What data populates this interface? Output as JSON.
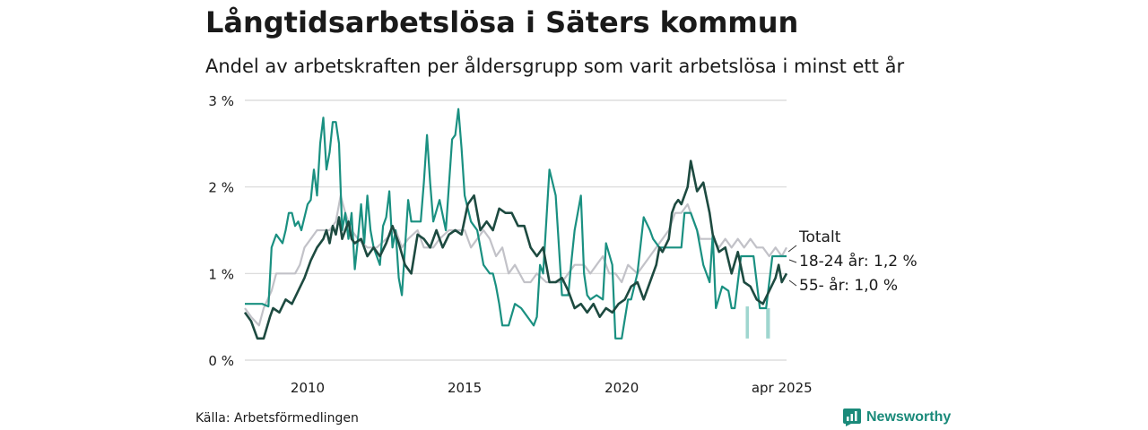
{
  "title": "Långtidsarbetslösa i Säters kommun",
  "subtitle": "Andel av arbetskraften per åldersgrupp som varit arbetslösa i minst ett år",
  "source": "Källa: Arbetsförmedlingen",
  "brand": "Newsworthy",
  "colors": {
    "totalt": "#c2c2c8",
    "youth": "#1a9081",
    "older": "#1d4a40",
    "band": "#9fd6cf",
    "grid": "#d8d8d8"
  },
  "chart_data": {
    "type": "line",
    "y_ticks": [
      "0 %",
      "1 %",
      "2 %",
      "3 %"
    ],
    "x_ticks": [
      "2010",
      "2015",
      "2020",
      "apr 2025"
    ],
    "ylim": [
      0,
      3
    ],
    "xlim": [
      2008.0,
      2025.25
    ],
    "labels": {
      "totalt": "Totalt",
      "youth": "18-24 år: 1,2 %",
      "older": "55- år: 1,0 %"
    },
    "series": [
      {
        "name": "Totalt",
        "key": "totalt",
        "x": [
          2008.0,
          2008.2,
          2008.45,
          2008.6,
          2008.85,
          2009.0,
          2009.2,
          2009.6,
          2009.75,
          2009.9,
          2010.1,
          2010.3,
          2010.5,
          2010.7,
          2010.9,
          2011.05,
          2011.2,
          2011.4,
          2011.6,
          2011.9,
          2012.2,
          2012.5,
          2012.8,
          2013.0,
          2013.2,
          2013.5,
          2013.7,
          2014.0,
          2014.2,
          2014.5,
          2014.8,
          2015.0,
          2015.2,
          2015.4,
          2015.6,
          2015.8,
          2016.0,
          2016.2,
          2016.4,
          2016.6,
          2016.9,
          2017.1,
          2017.3,
          2017.6,
          2017.9,
          2018.1,
          2018.3,
          2018.5,
          2018.8,
          2019.0,
          2019.2,
          2019.4,
          2019.6,
          2019.8,
          2020.0,
          2020.2,
          2020.5,
          2020.7,
          2020.9,
          2021.1,
          2021.3,
          2021.5,
          2021.7,
          2021.9,
          2022.1,
          2022.3,
          2022.5,
          2022.7,
          2022.9,
          2023.1,
          2023.3,
          2023.5,
          2023.7,
          2023.9,
          2024.1,
          2024.3,
          2024.5,
          2024.7,
          2024.9,
          2025.1,
          2025.25
        ],
        "y": [
          0.6,
          0.5,
          0.4,
          0.6,
          0.8,
          1.0,
          1.0,
          1.0,
          1.1,
          1.3,
          1.4,
          1.5,
          1.5,
          1.5,
          1.6,
          1.9,
          1.7,
          1.5,
          1.4,
          1.3,
          1.3,
          1.4,
          1.5,
          1.3,
          1.4,
          1.5,
          1.3,
          1.3,
          1.4,
          1.5,
          1.5,
          1.5,
          1.3,
          1.4,
          1.5,
          1.4,
          1.2,
          1.3,
          1.0,
          1.1,
          0.9,
          0.9,
          1.0,
          0.9,
          0.9,
          0.9,
          1.0,
          1.1,
          1.1,
          1.0,
          1.1,
          1.2,
          1.0,
          1.0,
          0.9,
          1.1,
          1.0,
          1.1,
          1.2,
          1.3,
          1.4,
          1.5,
          1.7,
          1.7,
          1.8,
          1.6,
          1.4,
          1.4,
          1.4,
          1.3,
          1.4,
          1.3,
          1.4,
          1.3,
          1.4,
          1.3,
          1.3,
          1.2,
          1.3,
          1.2,
          1.3
        ]
      },
      {
        "name": "18-24 år",
        "key": "youth",
        "x": [
          2008.0,
          2008.2,
          2008.55,
          2008.75,
          2008.85,
          2009.0,
          2009.2,
          2009.3,
          2009.4,
          2009.5,
          2009.6,
          2009.7,
          2009.8,
          2010.0,
          2010.1,
          2010.2,
          2010.3,
          2010.4,
          2010.5,
          2010.6,
          2010.7,
          2010.8,
          2010.9,
          2011.0,
          2011.1,
          2011.2,
          2011.3,
          2011.4,
          2011.5,
          2011.6,
          2011.7,
          2011.8,
          2011.9,
          2012.0,
          2012.1,
          2012.2,
          2012.3,
          2012.4,
          2012.5,
          2012.6,
          2012.7,
          2012.8,
          2012.9,
          2013.0,
          2013.1,
          2013.2,
          2013.3,
          2013.4,
          2013.5,
          2013.6,
          2013.7,
          2013.8,
          2013.9,
          2014.0,
          2014.2,
          2014.4,
          2014.6,
          2014.7,
          2014.8,
          2014.9,
          2015.0,
          2015.1,
          2015.2,
          2015.3,
          2015.4,
          2015.5,
          2015.6,
          2015.7,
          2015.8,
          2015.9,
          2016.0,
          2016.1,
          2016.2,
          2016.4,
          2016.6,
          2016.8,
          2016.9,
          2017.1,
          2017.2,
          2017.3,
          2017.4,
          2017.5,
          2017.7,
          2017.9,
          2018.1,
          2018.3,
          2018.4,
          2018.5,
          2018.7,
          2018.8,
          2018.9,
          2019.0,
          2019.2,
          2019.4,
          2019.5,
          2019.7,
          2019.8,
          2020.0,
          2020.2,
          2020.3,
          2020.5,
          2020.7,
          2020.9,
          2021.0,
          2021.1,
          2021.2,
          2021.3,
          2021.5,
          2021.7,
          2021.8,
          2021.9,
          2022.0,
          2022.2,
          2022.4,
          2022.6,
          2022.8,
          2022.9,
          2023.0,
          2023.2,
          2023.4,
          2023.5,
          2023.6,
          2023.8,
          2024.0,
          2024.2,
          2024.4,
          2024.6,
          2024.8,
          2025.0,
          2025.1,
          2025.25
        ],
        "y": [
          0.65,
          0.65,
          0.65,
          0.62,
          1.3,
          1.45,
          1.35,
          1.5,
          1.7,
          1.7,
          1.55,
          1.6,
          1.5,
          1.8,
          1.85,
          2.2,
          1.9,
          2.5,
          2.8,
          2.2,
          2.4,
          2.75,
          2.75,
          2.5,
          1.5,
          1.7,
          1.4,
          1.7,
          1.05,
          1.4,
          1.8,
          1.35,
          1.9,
          1.5,
          1.3,
          1.2,
          1.1,
          1.55,
          1.65,
          1.95,
          1.3,
          1.5,
          0.95,
          0.75,
          1.3,
          1.85,
          1.6,
          1.6,
          1.6,
          1.6,
          2.05,
          2.6,
          2.05,
          1.6,
          1.85,
          1.5,
          2.55,
          2.6,
          2.9,
          2.45,
          1.9,
          1.75,
          1.6,
          1.55,
          1.5,
          1.3,
          1.1,
          1.05,
          1.0,
          1.0,
          0.85,
          0.65,
          0.4,
          0.4,
          0.65,
          0.6,
          0.55,
          0.45,
          0.4,
          0.5,
          1.1,
          1.0,
          2.2,
          1.9,
          0.75,
          0.75,
          1.15,
          1.5,
          1.9,
          1.0,
          0.75,
          0.7,
          0.75,
          0.7,
          1.35,
          1.1,
          0.25,
          0.25,
          0.7,
          0.7,
          1.0,
          1.65,
          1.5,
          1.4,
          1.35,
          1.3,
          1.3,
          1.3,
          1.3,
          1.3,
          1.3,
          1.7,
          1.7,
          1.5,
          1.1,
          0.9,
          1.45,
          0.6,
          0.85,
          0.8,
          0.6,
          0.6,
          1.2,
          1.2,
          1.2,
          0.6,
          0.6,
          1.2,
          1.2,
          1.2,
          1.2
        ]
      },
      {
        "name": "55- år",
        "key": "older",
        "x": [
          2008.0,
          2008.2,
          2008.4,
          2008.6,
          2008.8,
          2008.9,
          2009.1,
          2009.3,
          2009.5,
          2009.7,
          2009.9,
          2010.1,
          2010.3,
          2010.5,
          2010.6,
          2010.7,
          2010.8,
          2010.9,
          2011.0,
          2011.1,
          2011.2,
          2011.3,
          2011.4,
          2011.5,
          2011.7,
          2011.9,
          2012.1,
          2012.3,
          2012.5,
          2012.7,
          2012.9,
          2013.1,
          2013.3,
          2013.5,
          2013.7,
          2013.9,
          2014.1,
          2014.3,
          2014.5,
          2014.7,
          2014.9,
          2015.1,
          2015.3,
          2015.5,
          2015.7,
          2015.9,
          2016.1,
          2016.3,
          2016.5,
          2016.7,
          2016.9,
          2017.1,
          2017.3,
          2017.5,
          2017.7,
          2017.9,
          2018.1,
          2018.3,
          2018.5,
          2018.7,
          2018.9,
          2019.1,
          2019.3,
          2019.5,
          2019.7,
          2019.9,
          2020.1,
          2020.3,
          2020.5,
          2020.7,
          2020.9,
          2021.1,
          2021.2,
          2021.3,
          2021.5,
          2021.6,
          2021.7,
          2021.8,
          2021.9,
          2022.1,
          2022.2,
          2022.4,
          2022.6,
          2022.8,
          2022.9,
          2023.1,
          2023.3,
          2023.5,
          2023.7,
          2023.9,
          2024.1,
          2024.3,
          2024.5,
          2024.7,
          2024.9,
          2025.0,
          2025.1,
          2025.25
        ],
        "y": [
          0.55,
          0.45,
          0.25,
          0.25,
          0.5,
          0.6,
          0.55,
          0.7,
          0.65,
          0.8,
          0.95,
          1.15,
          1.3,
          1.4,
          1.5,
          1.35,
          1.55,
          1.45,
          1.65,
          1.4,
          1.5,
          1.6,
          1.4,
          1.35,
          1.4,
          1.2,
          1.3,
          1.2,
          1.35,
          1.55,
          1.35,
          1.1,
          1.0,
          1.45,
          1.4,
          1.3,
          1.5,
          1.3,
          1.45,
          1.5,
          1.45,
          1.8,
          1.9,
          1.5,
          1.6,
          1.5,
          1.75,
          1.7,
          1.7,
          1.55,
          1.55,
          1.3,
          1.2,
          1.3,
          0.9,
          0.9,
          0.95,
          0.8,
          0.6,
          0.65,
          0.55,
          0.65,
          0.5,
          0.6,
          0.55,
          0.65,
          0.7,
          0.85,
          0.9,
          0.7,
          0.9,
          1.1,
          1.3,
          1.25,
          1.4,
          1.7,
          1.8,
          1.85,
          1.8,
          2.0,
          2.3,
          1.95,
          2.05,
          1.7,
          1.45,
          1.25,
          1.3,
          1.0,
          1.25,
          0.9,
          0.85,
          0.7,
          0.65,
          0.8,
          0.95,
          1.1,
          0.9,
          1.0
        ]
      }
    ],
    "bands": [
      {
        "x": [
          2023.95,
          2024.05
        ],
        "y": [
          0.25,
          0.62
        ]
      },
      {
        "x": [
          2024.6,
          2024.72
        ],
        "y": [
          0.25,
          0.6
        ]
      }
    ]
  }
}
